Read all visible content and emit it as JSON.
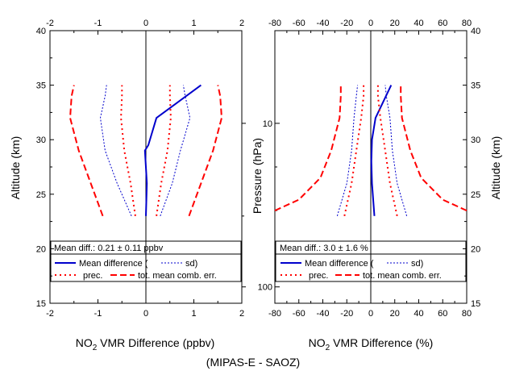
{
  "colors": {
    "blue": "#0000cc",
    "red": "#ff0000",
    "black": "#000000"
  },
  "footer_label": "(MIPAS-E - SAOZ)",
  "chart_data": [
    {
      "type": "line",
      "panel": "left",
      "xlabel": {
        "prefix": "NO",
        "sub": "2",
        "suffix": " VMR Difference (ppbv)"
      },
      "ylabel": "Altitude (km)",
      "xlim": [
        -2,
        2
      ],
      "ylim": [
        15,
        40
      ],
      "xticks": [
        -2,
        -1,
        0,
        1,
        2
      ],
      "yticks": [
        15,
        20,
        25,
        30,
        35,
        40
      ],
      "legend_header": "Mean diff.: 0.21 ± 0.11 ppbv",
      "legend_mean_label": "Mean difference (",
      "legend_sd_label": "sd)",
      "legend_prec_label": "prec.",
      "legend_err_label": "tot. mean comb. err.",
      "series": [
        {
          "role": "mean",
          "style": "blue-solid",
          "x": [
            0,
            0.02,
            -0.02,
            0.05,
            0.22,
            1.15
          ],
          "y": [
            23,
            26,
            29,
            29.5,
            32,
            35
          ]
        },
        {
          "role": "sd_minus",
          "style": "blue-dotted",
          "x": [
            -0.3,
            -0.6,
            -0.85,
            -0.95,
            -0.85,
            -0.82
          ],
          "y": [
            23,
            26,
            29,
            32,
            34,
            35
          ]
        },
        {
          "role": "sd_plus",
          "style": "blue-dotted",
          "x": [
            0.3,
            0.55,
            0.72,
            0.92,
            0.82,
            0.78
          ],
          "y": [
            23,
            26,
            29,
            32,
            34,
            35
          ]
        },
        {
          "role": "prec_minus",
          "style": "red-dotted",
          "x": [
            -0.22,
            -0.32,
            -0.45,
            -0.52,
            -0.5,
            -0.5
          ],
          "y": [
            23,
            26,
            29,
            32,
            34,
            35
          ]
        },
        {
          "role": "prec_plus",
          "style": "red-dotted",
          "x": [
            0.22,
            0.32,
            0.45,
            0.52,
            0.5,
            0.5
          ],
          "y": [
            23,
            26,
            29,
            32,
            34,
            35
          ]
        },
        {
          "role": "err_minus",
          "style": "red-dashed",
          "x": [
            -0.9,
            -1.15,
            -1.4,
            -1.58,
            -1.55,
            -1.5
          ],
          "y": [
            23,
            26,
            29,
            32,
            34,
            35
          ]
        },
        {
          "role": "err_plus",
          "style": "red-dashed",
          "x": [
            0.9,
            1.15,
            1.4,
            1.58,
            1.55,
            1.5
          ],
          "y": [
            23,
            26,
            29,
            32,
            34,
            35
          ]
        }
      ]
    },
    {
      "type": "line",
      "panel": "right",
      "xlabel": {
        "prefix": "NO",
        "sub": "2",
        "suffix": " VMR Difference (%)"
      },
      "ylabel_left": "Pressure (hPa)",
      "ylabel_right": "Altitude (km)",
      "xlim": [
        -80,
        80
      ],
      "ylim": [
        15,
        40
      ],
      "xticks": [
        -80,
        -60,
        -40,
        -20,
        0,
        20,
        40,
        60,
        80
      ],
      "yticks": [
        15,
        20,
        25,
        30,
        35,
        40
      ],
      "pressure_ticks": [
        {
          "label": "10",
          "altitude": 31.5
        },
        {
          "label": "100",
          "altitude": 16.5
        }
      ],
      "legend_header": "Mean diff.: 3.0 ± 1.6 %",
      "legend_mean_label": "Mean difference (",
      "legend_sd_label": "sd)",
      "legend_prec_label": "prec.",
      "legend_err_label": "tot. mean comb. err.",
      "series": [
        {
          "role": "mean",
          "style": "blue-solid",
          "x": [
            3,
            1,
            0.5,
            1,
            4,
            17
          ],
          "y": [
            23,
            26,
            28,
            30,
            32,
            35
          ]
        },
        {
          "role": "sd_minus",
          "style": "blue-dotted",
          "x": [
            -28,
            -20,
            -16,
            -14,
            -12,
            -11
          ],
          "y": [
            23,
            26,
            29,
            32,
            34,
            35
          ]
        },
        {
          "role": "sd_plus",
          "style": "blue-dotted",
          "x": [
            30,
            22,
            18,
            16,
            13,
            12
          ],
          "y": [
            23,
            26,
            29,
            32,
            34,
            35
          ]
        },
        {
          "role": "prec_minus",
          "style": "red-dotted",
          "x": [
            -22,
            -16,
            -12,
            -8,
            -6,
            -6
          ],
          "y": [
            23,
            26,
            29,
            32,
            34,
            35
          ]
        },
        {
          "role": "prec_plus",
          "style": "red-dotted",
          "x": [
            22,
            16,
            12,
            8,
            6,
            6
          ],
          "y": [
            23,
            26,
            29,
            32,
            34,
            35
          ]
        },
        {
          "role": "err_minus",
          "style": "red-dashed",
          "x": [
            -80,
            -60,
            -42,
            -33,
            -26,
            -25,
            -25
          ],
          "y": [
            23.5,
            24.5,
            26.5,
            29,
            32,
            34,
            35
          ]
        },
        {
          "role": "err_plus",
          "style": "red-dashed",
          "x": [
            80,
            60,
            42,
            33,
            26,
            25,
            25
          ],
          "y": [
            23.5,
            24.5,
            26.5,
            29,
            32,
            34,
            35
          ]
        }
      ]
    }
  ]
}
